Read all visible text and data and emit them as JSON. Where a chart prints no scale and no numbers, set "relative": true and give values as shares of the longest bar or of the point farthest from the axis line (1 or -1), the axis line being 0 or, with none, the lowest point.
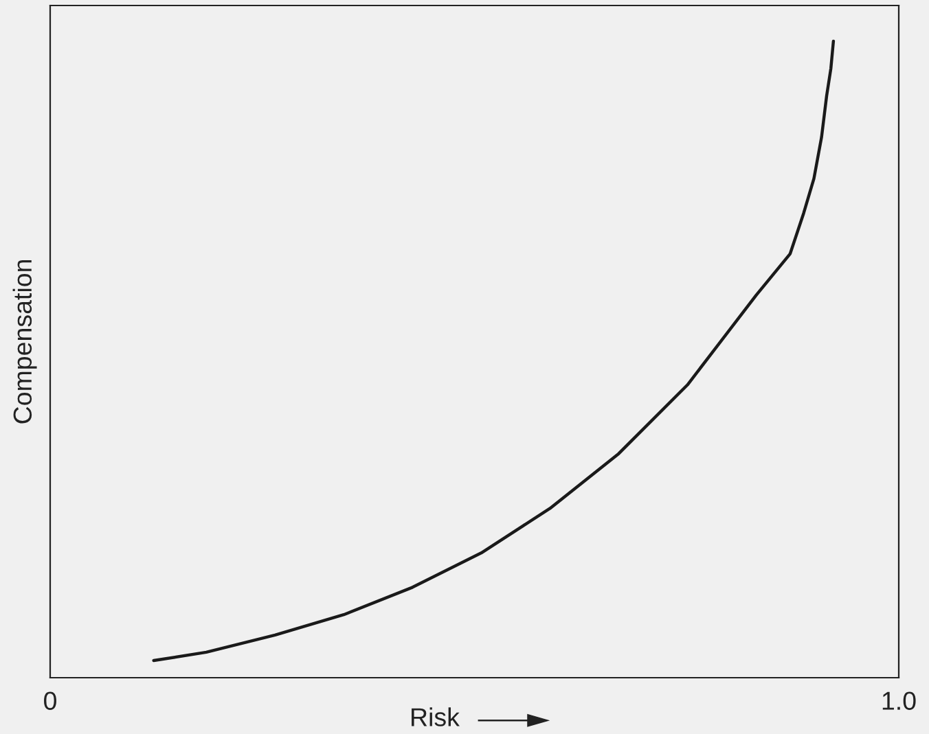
{
  "chart_data": {
    "type": "line",
    "relative": true,
    "xlabel": "Risk",
    "ylabel": "Compensation",
    "xlim": [
      0,
      1
    ],
    "xticks": [
      0,
      {
        "value": 1,
        "label": "1.0"
      }
    ],
    "tick_labels": "x",
    "marker": "none",
    "line_style": "solid",
    "series": [
      {
        "color": "#1a1a1a",
        "x": [
          0.122,
          0.184,
          0.265,
          0.346,
          0.427,
          0.508,
          0.589,
          0.67,
          0.751,
          0.832,
          0.872,
          0.888,
          0.9,
          0.909,
          0.915,
          0.92,
          0.923
        ],
        "values": [
          0.027,
          0.04,
          0.067,
          0.099,
          0.142,
          0.196,
          0.266,
          0.352,
          0.46,
          0.601,
          0.666,
          0.73,
          0.784,
          0.849,
          0.914,
          0.957,
          1.0
        ]
      }
    ]
  }
}
